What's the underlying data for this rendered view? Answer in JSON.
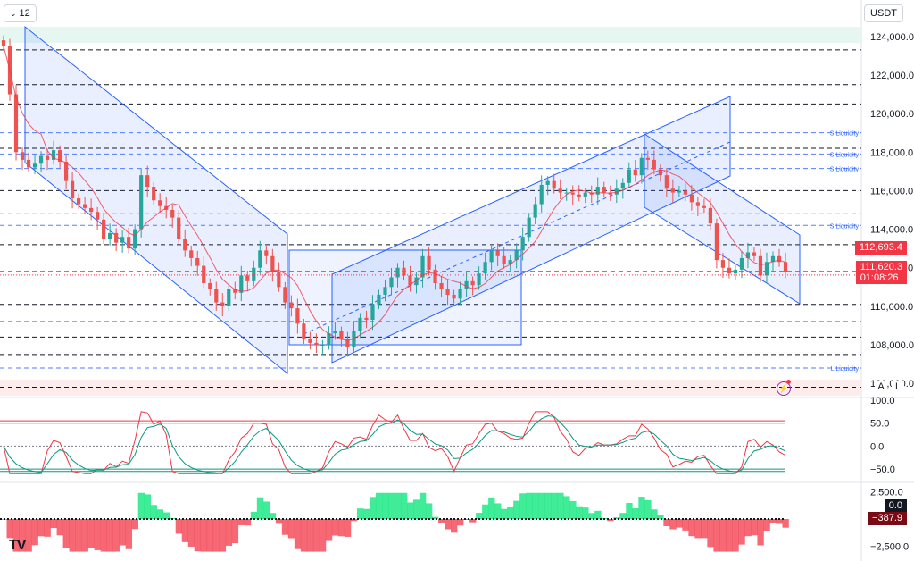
{
  "toolbar": {
    "timeframe": "12",
    "currency": "USDT"
  },
  "price_tags": {
    "high": "112,693.4",
    "current": "111,620.3",
    "countdown": "01:08:26"
  },
  "osc_tags": {
    "zero": "0.0",
    "hist": "−387.9"
  },
  "scale_buttons": {
    "auto": "A",
    "log": "L"
  },
  "icons": {
    "flash": "lightning-icon",
    "logo": "tradingview-logo"
  },
  "colors": {
    "up": "#26a69a",
    "down": "#ef5350",
    "channel": "#2962ff",
    "rsi_fast": "#f23645",
    "rsi_slow": "#089981"
  },
  "chart_data": [
    {
      "type": "candlestick",
      "y_ticks": [
        "124,000.0",
        "122,000.0",
        "120,000.0",
        "118,000.0",
        "116,000.0",
        "114,000.0",
        "112,000.0",
        "110,000.0",
        "108,000.0",
        "106,000.0"
      ],
      "ylim": [
        105500,
        124500
      ],
      "liquidity_labels": [
        {
          "text": "S Liquidity",
          "y": 119000
        },
        {
          "text": "S Liquidity",
          "y": 117900
        },
        {
          "text": "S Liquidity",
          "y": 117150
        },
        {
          "text": "S Liquidity",
          "y": 114200
        },
        {
          "text": "L Liquidity",
          "y": 106800
        }
      ],
      "horizontal_levels": [
        123300,
        121500,
        120500,
        118200,
        116000,
        114800,
        113200,
        111800,
        110100,
        109200,
        108400,
        107500,
        105800
      ],
      "current_price": 111620.3,
      "high_tag": 112693.4,
      "close_path": [
        123500,
        121000,
        118000,
        117600,
        117200,
        117400,
        117800,
        117600,
        118100,
        117500,
        116500,
        115600,
        115300,
        115100,
        114900,
        114500,
        113500,
        113800,
        113300,
        113600,
        113000,
        114000,
        116800,
        116200,
        115500,
        115200,
        115000,
        114600,
        113500,
        112900,
        112500,
        112100,
        111200,
        110900,
        110200,
        110000,
        110900,
        110700,
        111600,
        111300,
        112000,
        112900,
        112600,
        111800,
        111000,
        110200,
        109900,
        109100,
        108300,
        108100,
        108000,
        108000,
        108600,
        108700,
        108300,
        107900,
        108700,
        109400,
        109300,
        110100,
        110600,
        111000,
        111500,
        112000,
        111600,
        111100,
        111500,
        112600,
        111900,
        111200,
        110900,
        110600,
        110400,
        110900,
        111300,
        111100,
        111700,
        112300,
        112900,
        112600,
        112200,
        112400,
        112900,
        113600,
        114600,
        115300,
        116300,
        116500,
        116100,
        115900,
        115900,
        115800,
        115700,
        115900,
        115800,
        116200,
        115900,
        115800,
        116100,
        116400,
        117100,
        116800,
        117700,
        117600,
        117100,
        116800,
        116100,
        115900,
        116000,
        115800,
        115400,
        115200,
        115100,
        114300,
        112400,
        112000,
        111700,
        111900,
        112500,
        112800,
        112600,
        111600,
        112300,
        112600,
        112300,
        111800
      ]
    },
    {
      "type": "line",
      "name": "",
      "y_ticks": [
        "100.0",
        "50.0",
        "0.0",
        "−50.0"
      ],
      "ylim": [
        -75,
        100
      ],
      "levels": [
        55,
        50,
        -50,
        -55
      ]
    },
    {
      "type": "bar",
      "y_ticks": [
        "2,500.0",
        "0.0",
        "−2,500.0"
      ],
      "ylim": [
        -3200,
        3200
      ],
      "last_value": -387.9
    }
  ]
}
